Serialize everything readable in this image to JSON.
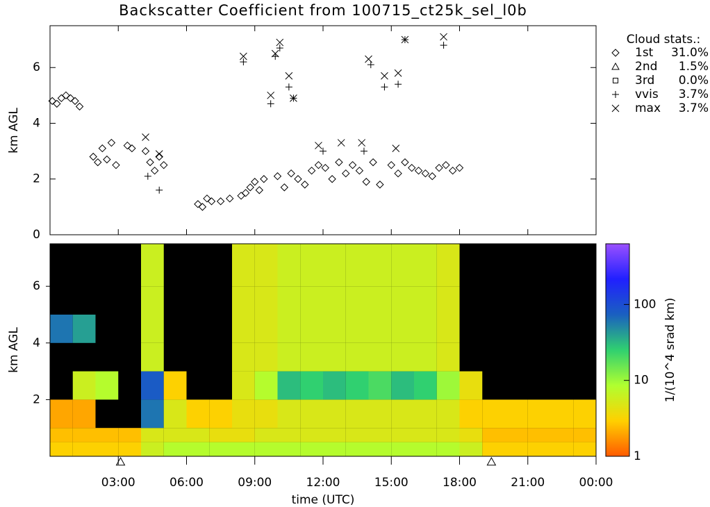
{
  "chart_data": [
    {
      "type": "scatter",
      "title": "Backscatter Coefficient from 100715_ct25k_sel_l0b",
      "ylabel": "km AGL",
      "ylim": [
        0,
        7.5
      ],
      "yticks": [
        0,
        2,
        4,
        6
      ],
      "xlim": [
        0,
        24
      ],
      "legend_title": "Cloud stats.:",
      "legend": "right",
      "series": [
        {
          "name": "1st",
          "share": 31.0,
          "share_label": "31.0%",
          "marker": "diamond",
          "x": [
            0.1,
            0.3,
            0.5,
            0.7,
            0.9,
            1.1,
            1.3,
            1.9,
            2.1,
            2.3,
            2.5,
            2.7,
            2.9,
            3.4,
            3.6,
            4.2,
            4.4,
            4.6,
            4.8,
            5.0,
            6.5,
            6.7,
            6.9,
            7.1,
            7.5,
            7.9,
            8.4,
            8.6,
            8.8,
            9.0,
            9.2,
            9.4,
            10.0,
            10.3,
            10.6,
            10.9,
            11.2,
            11.5,
            11.8,
            12.1,
            12.4,
            12.7,
            13.0,
            13.3,
            13.6,
            13.9,
            14.2,
            14.5,
            15.0,
            15.3,
            15.6,
            15.9,
            16.2,
            16.5,
            16.8,
            17.1,
            17.4,
            17.7,
            18.0
          ],
          "values": [
            4.8,
            4.7,
            4.9,
            5.0,
            4.9,
            4.8,
            4.6,
            2.8,
            2.6,
            3.1,
            2.7,
            3.3,
            2.5,
            3.2,
            3.1,
            3.0,
            2.6,
            2.3,
            2.8,
            2.5,
            1.1,
            1.0,
            1.3,
            1.2,
            1.2,
            1.3,
            1.4,
            1.5,
            1.7,
            1.9,
            1.6,
            2.0,
            2.1,
            1.7,
            2.2,
            2.0,
            1.8,
            2.3,
            2.5,
            2.4,
            2.0,
            2.6,
            2.2,
            2.5,
            2.3,
            1.9,
            2.6,
            1.8,
            2.5,
            2.2,
            2.6,
            2.4,
            2.3,
            2.2,
            2.1,
            2.4,
            2.5,
            2.3,
            2.4
          ]
        },
        {
          "name": "2nd",
          "share": 1.5,
          "share_label": "1.5%",
          "marker": "triangle",
          "x": [],
          "values": []
        },
        {
          "name": "3rd",
          "share": 0.0,
          "share_label": "0.0%",
          "marker": "square",
          "x": [],
          "values": []
        },
        {
          "name": "vvis",
          "share": 3.7,
          "share_label": "3.7%",
          "marker": "plus",
          "x": [
            4.3,
            4.8,
            8.5,
            9.7,
            9.9,
            10.1,
            10.5,
            10.7,
            12.0,
            13.8,
            14.1,
            14.7,
            15.3,
            15.6,
            17.3
          ],
          "values": [
            2.1,
            1.6,
            6.2,
            4.7,
            6.4,
            6.7,
            5.3,
            4.9,
            3.0,
            3.0,
            6.1,
            5.3,
            5.4,
            7.0,
            6.8
          ]
        },
        {
          "name": "max",
          "share": 3.7,
          "share_label": "3.7%",
          "marker": "cross",
          "x": [
            4.2,
            4.8,
            8.5,
            9.7,
            9.9,
            10.1,
            10.5,
            10.7,
            11.8,
            12.8,
            13.7,
            14.0,
            14.7,
            15.2,
            15.3,
            15.6,
            17.3
          ],
          "values": [
            3.5,
            2.9,
            6.4,
            5.0,
            6.5,
            6.9,
            5.7,
            4.9,
            3.2,
            3.3,
            3.3,
            6.3,
            5.7,
            3.1,
            5.8,
            7.0,
            7.1
          ]
        }
      ]
    },
    {
      "type": "heatmap",
      "ylabel": "km AGL",
      "xlabel": "time (UTC)",
      "ylim": [
        0,
        7.5
      ],
      "yticks": [
        2,
        4,
        6
      ],
      "xlim": [
        0,
        24
      ],
      "xticks": [
        {
          "value": 3,
          "label": "03:00"
        },
        {
          "value": 6,
          "label": "06:00"
        },
        {
          "value": 9,
          "label": "09:00"
        },
        {
          "value": 12,
          "label": "12:00"
        },
        {
          "value": 15,
          "label": "15:00"
        },
        {
          "value": 18,
          "label": "18:00"
        },
        {
          "value": 21,
          "label": "21:00"
        },
        {
          "value": 24,
          "label": "00:00"
        }
      ],
      "x_markers": [
        3.1,
        19.4
      ],
      "x_bins": [
        0,
        1,
        2,
        3,
        4,
        5,
        6,
        7,
        8,
        9,
        10,
        11,
        12,
        13,
        14,
        15,
        16,
        17,
        18,
        19,
        20,
        21,
        22,
        23,
        24
      ],
      "y_bins": [
        0,
        0.5,
        1,
        2,
        3,
        4,
        5,
        6,
        7.5
      ],
      "values": [
        [
          3,
          3,
          3,
          3,
          6,
          8,
          8,
          8,
          8,
          8,
          8,
          8,
          8,
          8,
          8,
          8,
          8,
          8,
          6,
          3,
          3,
          3,
          3,
          3
        ],
        [
          2.5,
          2.5,
          2.5,
          2.5,
          5,
          5,
          5,
          4,
          4,
          5,
          5,
          5,
          5,
          5,
          5,
          5,
          5,
          5,
          4,
          2.5,
          2.5,
          2.5,
          2.5,
          2.5
        ],
        [
          2,
          2,
          null,
          null,
          60,
          5,
          3,
          3,
          4,
          4,
          5,
          5,
          5,
          5,
          5,
          5,
          5,
          5,
          3,
          3,
          3,
          3,
          3,
          3
        ],
        [
          null,
          6,
          8,
          null,
          80,
          3,
          null,
          null,
          5,
          8,
          30,
          25,
          30,
          25,
          20,
          30,
          25,
          10,
          4,
          null,
          null,
          null,
          null,
          null
        ],
        [
          null,
          null,
          null,
          null,
          6,
          null,
          null,
          null,
          5,
          5,
          6,
          6,
          6,
          6,
          6,
          6,
          6,
          5,
          null,
          null,
          null,
          null,
          null,
          null
        ],
        [
          60,
          40,
          null,
          null,
          6,
          null,
          null,
          null,
          5,
          5,
          6,
          6,
          6,
          6,
          6,
          6,
          6,
          5,
          null,
          null,
          null,
          null,
          null,
          null
        ],
        [
          null,
          null,
          null,
          null,
          6,
          null,
          null,
          null,
          5,
          5,
          6,
          6,
          6,
          6,
          6,
          6,
          6,
          5,
          null,
          null,
          null,
          null,
          null,
          null
        ],
        [
          null,
          null,
          null,
          null,
          6,
          null,
          null,
          null,
          5,
          5,
          6,
          6,
          6,
          6,
          6,
          6,
          6,
          5,
          null,
          null,
          null,
          null,
          null,
          null
        ]
      ],
      "log_scale": true,
      "clim": [
        1,
        630
      ],
      "cticks": [
        1,
        10,
        100
      ],
      "colorbar_label": "1/(10^4 srad km)",
      "colorscale": [
        "#ff5a00",
        "#ffd000",
        "#b0ff30",
        "#30d070",
        "#1a60c0",
        "#2020ff",
        "#9a50ff"
      ]
    }
  ]
}
